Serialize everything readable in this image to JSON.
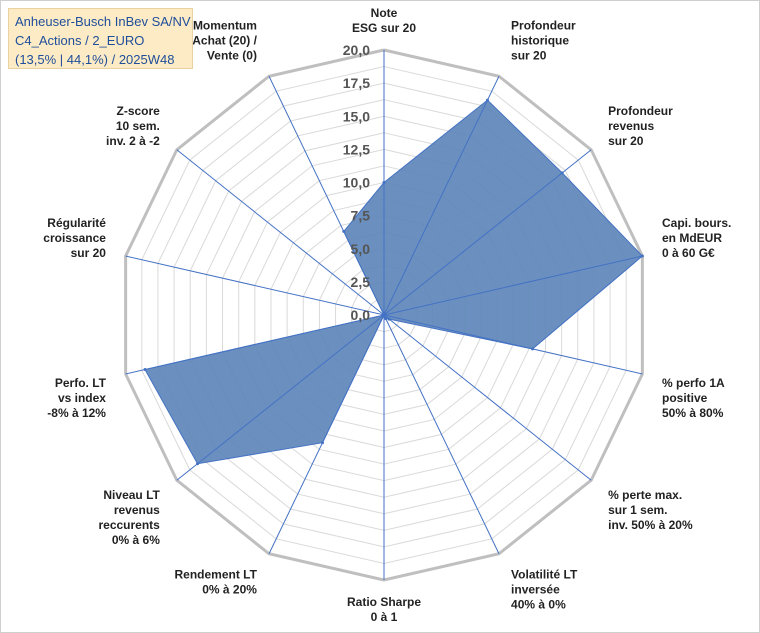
{
  "chart_title": {
    "line1": "Anheuser-Busch InBev SA/NV",
    "line2": "C4_Actions / 2_EURO",
    "line3": "(13,5% | 44,1%) / 2025W48"
  },
  "colors": {
    "fill": "#5b84b8",
    "stroke": "#4472c4",
    "grid": "#d9d9d9",
    "outer_ring": "#bfbfbf",
    "spoke": "#4472c4",
    "title_text": "#1f4e9a",
    "title_bg": "#fdebc5"
  },
  "chart_data": {
    "type": "radar",
    "title": "Anheuser-Busch InBev SA/NV — C4_Actions / 2_EURO — (13,5% | 44,1%) / 2025W48",
    "rlim": [
      0,
      20
    ],
    "rticks": [
      "0,0",
      "2,5",
      "5,0",
      "7,5",
      "10,0",
      "12,5",
      "15,0",
      "17,5",
      "20,0"
    ],
    "grid": true,
    "categories": [
      "Note ESG sur 20",
      "Profondeur historique sur 20",
      "Profondeur revenus sur 20",
      "Capi. bours. en MdEUR 0 à 60 G€",
      "% perfo 1A positive 50% à 80%",
      "% perte max. sur 1 sem. inv. 50% à 20%",
      "Volatilité LT inversée 40% à 0%",
      "Ratio Sharpe 0 à 1",
      "Rendement LT 0% à 20%",
      "Niveau LT revenus reccurents 0% à 6%",
      "Perfo. LT vs index -8% à 12%",
      "Régularité croissance sur 20",
      "Z-score 10 sem. inv. 2 à -2",
      "Momentum Achat (20) / Vente (0)"
    ],
    "axis_labels": [
      [
        "Note",
        "ESG sur 20"
      ],
      [
        "Profondeur",
        "historique",
        "sur 20"
      ],
      [
        "Profondeur",
        "revenus",
        "sur 20"
      ],
      [
        "Capi. bours.",
        "en MdEUR",
        "0 à 60 G€"
      ],
      [
        "% perfo 1A",
        "positive",
        "50% à 80%"
      ],
      [
        "% perte max.",
        "sur 1 sem.",
        "inv. 50% à 20%"
      ],
      [
        "Volatilité LT",
        "inversée",
        "40% à 0%"
      ],
      [
        "Ratio Sharpe",
        "0 à 1"
      ],
      [
        "Rendement LT",
        "0% à 20%"
      ],
      [
        "Niveau LT",
        "revenus",
        "reccurents",
        "0% à 6%"
      ],
      [
        "Perfo. LT",
        "vs index",
        "-8% à 12%"
      ],
      [
        "Régularité",
        "croissance",
        "sur 20"
      ],
      [
        "Z-score",
        "10 sem.",
        "inv. 2 à -2"
      ],
      [
        "Momentum",
        "Achat (20) /",
        "Vente (0)"
      ]
    ],
    "series": [
      {
        "name": "Anheuser-Busch InBev SA/NV",
        "values": [
          10.0,
          18.0,
          17.2,
          20.0,
          11.5,
          0.5,
          0.3,
          0.0,
          10.7,
          18.0,
          18.5,
          0.0,
          0.0,
          7.0
        ]
      }
    ]
  }
}
